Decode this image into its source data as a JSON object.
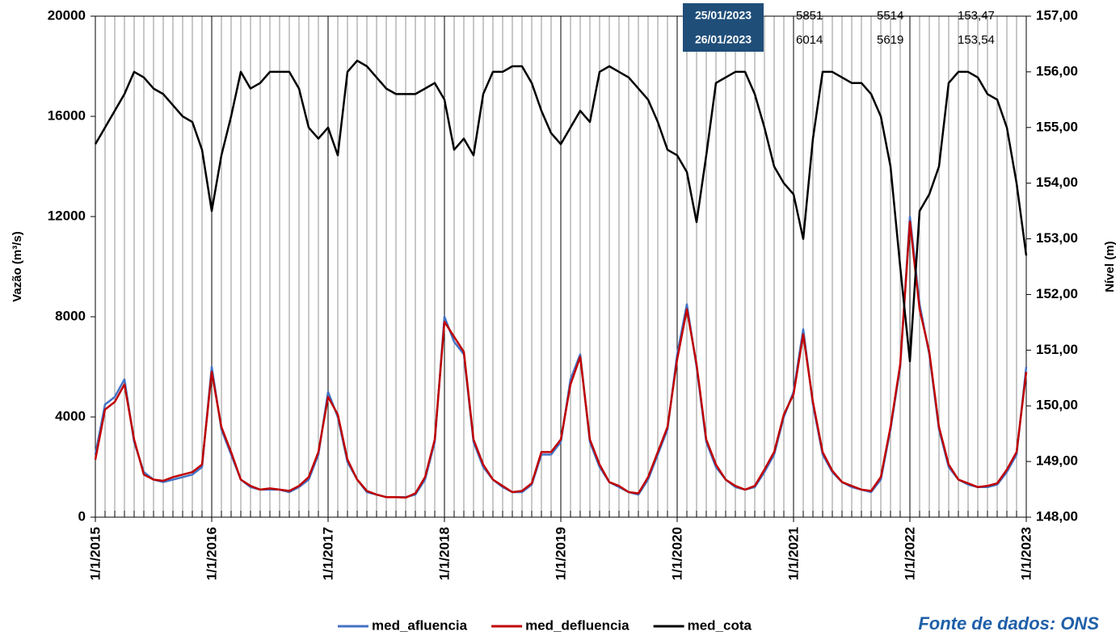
{
  "chart_data": {
    "type": "line",
    "ylabel": "Vazão (m³/s)",
    "y2label": "Nível (m)",
    "x": [
      2015,
      2015.083,
      2015.167,
      2015.25,
      2015.333,
      2015.417,
      2015.5,
      2015.583,
      2015.667,
      2015.75,
      2015.833,
      2015.917,
      2016,
      2016.083,
      2016.167,
      2016.25,
      2016.333,
      2016.417,
      2016.5,
      2016.583,
      2016.667,
      2016.75,
      2016.833,
      2016.917,
      2017,
      2017.083,
      2017.167,
      2017.25,
      2017.333,
      2017.417,
      2017.5,
      2017.583,
      2017.667,
      2017.75,
      2017.833,
      2017.917,
      2018,
      2018.083,
      2018.167,
      2018.25,
      2018.333,
      2018.417,
      2018.5,
      2018.583,
      2018.667,
      2018.75,
      2018.833,
      2018.917,
      2019,
      2019.083,
      2019.167,
      2019.25,
      2019.333,
      2019.417,
      2019.5,
      2019.583,
      2019.667,
      2019.75,
      2019.833,
      2019.917,
      2020,
      2020.083,
      2020.167,
      2020.25,
      2020.333,
      2020.417,
      2020.5,
      2020.583,
      2020.667,
      2020.75,
      2020.833,
      2020.917,
      2021,
      2021.083,
      2021.167,
      2021.25,
      2021.333,
      2021.417,
      2021.5,
      2021.583,
      2021.667,
      2021.75,
      2021.833,
      2021.917,
      2022,
      2022.083,
      2022.167,
      2022.25,
      2022.333,
      2022.417,
      2022.5,
      2022.583,
      2022.667,
      2022.75,
      2022.833,
      2022.917,
      2023
    ],
    "series": [
      {
        "name": "med_afluencia",
        "color": "#4472c4",
        "values": [
          2500,
          4500,
          4800,
          5500,
          3000,
          1800,
          1500,
          1400,
          1500,
          1600,
          1700,
          2000,
          6000,
          3500,
          2500,
          1500,
          1200,
          1100,
          1100,
          1100,
          1000,
          1200,
          1500,
          2500,
          5000,
          4000,
          2200,
          1500,
          1000,
          900,
          800,
          800,
          800,
          900,
          1500,
          3000,
          8000,
          7000,
          6500,
          3000,
          2000,
          1500,
          1200,
          1000,
          1000,
          1300,
          2500,
          2500,
          3000,
          5500,
          6500,
          3000,
          2000,
          1400,
          1200,
          1000,
          900,
          1500,
          2500,
          3500,
          6500,
          8500,
          6000,
          3000,
          2000,
          1500,
          1200,
          1100,
          1200,
          1800,
          2500,
          4000,
          5000,
          7500,
          4500,
          2500,
          1800,
          1400,
          1200,
          1100,
          1000,
          1500,
          3500,
          6000,
          12000,
          8500,
          6500,
          3500,
          2000,
          1500,
          1300,
          1200,
          1200,
          1300,
          1800,
          2500,
          6000
        ]
      },
      {
        "name": "med_defluencia",
        "color": "#c00000",
        "values": [
          2300,
          4300,
          4600,
          5300,
          3100,
          1700,
          1500,
          1450,
          1600,
          1700,
          1800,
          2100,
          5800,
          3600,
          2600,
          1500,
          1250,
          1100,
          1150,
          1100,
          1050,
          1250,
          1600,
          2600,
          4800,
          4100,
          2300,
          1500,
          1050,
          900,
          800,
          800,
          780,
          950,
          1600,
          3100,
          7800,
          7200,
          6600,
          3100,
          2100,
          1500,
          1250,
          1000,
          1050,
          1350,
          2600,
          2600,
          3100,
          5300,
          6400,
          3100,
          2100,
          1400,
          1250,
          1000,
          950,
          1600,
          2600,
          3600,
          6300,
          8300,
          6100,
          3100,
          2100,
          1500,
          1250,
          1100,
          1250,
          1900,
          2600,
          4100,
          4900,
          7300,
          4600,
          2600,
          1850,
          1400,
          1250,
          1100,
          1050,
          1600,
          3600,
          6100,
          11800,
          8300,
          6600,
          3600,
          2100,
          1500,
          1350,
          1200,
          1250,
          1350,
          1900,
          2600,
          5800
        ]
      },
      {
        "name": "med_cota",
        "color": "#000000",
        "axis": "y2",
        "values": [
          154.7,
          155.0,
          155.3,
          155.6,
          156.0,
          155.9,
          155.7,
          155.6,
          155.4,
          155.2,
          155.1,
          154.6,
          153.5,
          154.5,
          155.2,
          156.0,
          155.7,
          155.8,
          156.0,
          156.0,
          156.0,
          155.7,
          155.0,
          154.8,
          155.0,
          154.5,
          156.0,
          156.2,
          156.1,
          155.9,
          155.7,
          155.6,
          155.6,
          155.6,
          155.7,
          155.8,
          155.5,
          154.6,
          154.8,
          154.5,
          155.6,
          156.0,
          156.0,
          156.1,
          156.1,
          155.8,
          155.3,
          154.9,
          154.7,
          155.0,
          155.3,
          155.1,
          156.0,
          156.1,
          156.0,
          155.9,
          155.7,
          155.5,
          155.1,
          154.6,
          154.5,
          154.2,
          153.3,
          154.5,
          155.8,
          155.9,
          156.0,
          156.0,
          155.6,
          155.0,
          154.3,
          154.0,
          153.8,
          153.0,
          154.8,
          156.0,
          156.0,
          155.9,
          155.8,
          155.8,
          155.6,
          155.2,
          154.3,
          152.5,
          150.8,
          153.5,
          153.8,
          154.3,
          155.8,
          156.0,
          156.0,
          155.9,
          155.6,
          155.5,
          155.0,
          154.0,
          152.7
        ]
      }
    ],
    "xlim": [
      2015,
      2023
    ],
    "xticks": [
      {
        "value": 2015,
        "label": "1/1/2015"
      },
      {
        "value": 2016,
        "label": "1/1/2016"
      },
      {
        "value": 2017,
        "label": "1/1/2017"
      },
      {
        "value": 2018,
        "label": "1/1/2018"
      },
      {
        "value": 2019,
        "label": "1/1/2019"
      },
      {
        "value": 2020,
        "label": "1/1/2020"
      },
      {
        "value": 2021,
        "label": "1/1/2021"
      },
      {
        "value": 2022,
        "label": "1/1/2022"
      },
      {
        "value": 2023,
        "label": "1/1/2023"
      }
    ],
    "ylim": [
      0,
      20000
    ],
    "yticks": [
      0,
      4000,
      8000,
      12000,
      16000,
      20000
    ],
    "y2lim": [
      148,
      157
    ],
    "y2ticks": [
      {
        "value": 148,
        "label": "148,00"
      },
      {
        "value": 149,
        "label": "149,00"
      },
      {
        "value": 150,
        "label": "150,00"
      },
      {
        "value": 151,
        "label": "151,00"
      },
      {
        "value": 152,
        "label": "152,00"
      },
      {
        "value": 153,
        "label": "153,00"
      },
      {
        "value": 154,
        "label": "154,00"
      },
      {
        "value": 155,
        "label": "155,00"
      },
      {
        "value": 156,
        "label": "156,00"
      },
      {
        "value": 157,
        "label": "157,00"
      }
    ],
    "minor_grid": "monthly",
    "legend": "bottom",
    "source": "Fonte de dados: ONS",
    "table": [
      [
        "25/01/2023",
        "5851",
        "5514",
        "153,47"
      ],
      [
        "26/01/2023",
        "6014",
        "5619",
        "153,54"
      ]
    ]
  }
}
